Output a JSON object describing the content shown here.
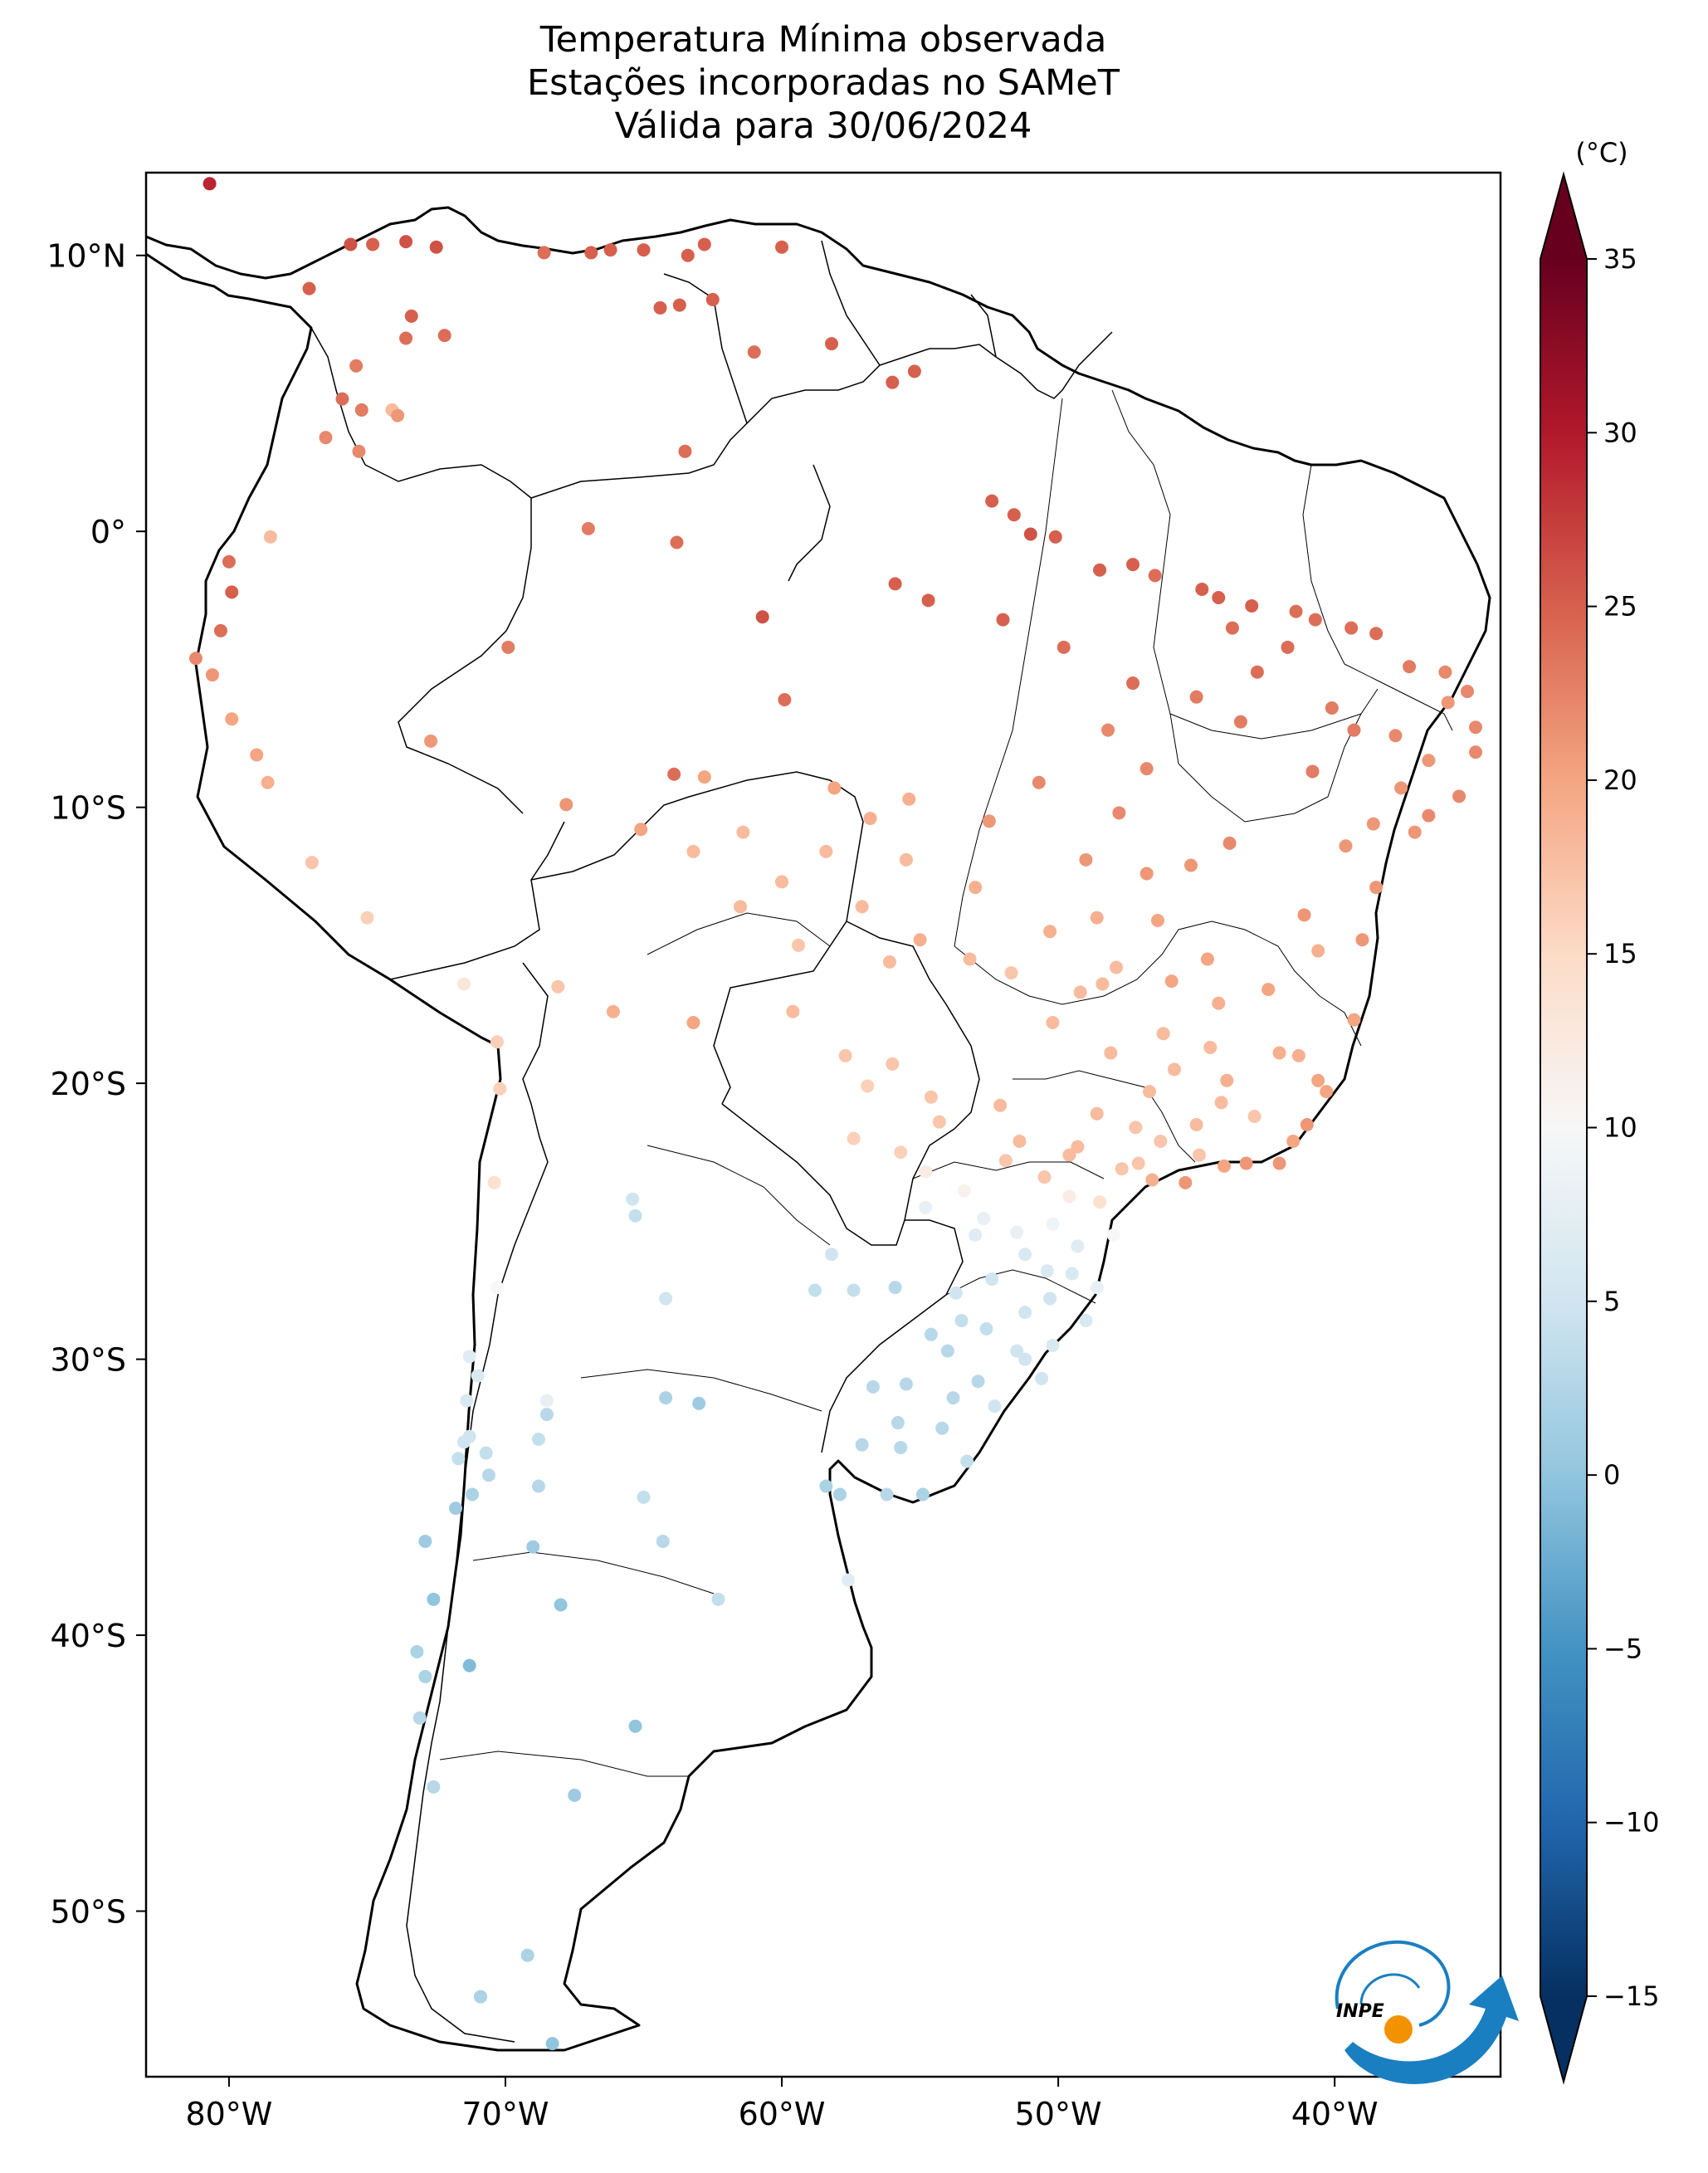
{
  "title": {
    "line1": "Temperatura Mínima observada",
    "line2": "Estações incorporadas no SAMeT",
    "line3": "Válida para 30/06/2024"
  },
  "axes": {
    "lon_ticks": [
      {
        "lon": -80,
        "label": "80°W"
      },
      {
        "lon": -70,
        "label": "70°W"
      },
      {
        "lon": -60,
        "label": "60°W"
      },
      {
        "lon": -50,
        "label": "50°W"
      },
      {
        "lon": -40,
        "label": "40°W"
      }
    ],
    "lat_ticks": [
      {
        "lat": 10,
        "label": "10°N"
      },
      {
        "lat": 0,
        "label": "0°"
      },
      {
        "lat": -10,
        "label": "10°S"
      },
      {
        "lat": -20,
        "label": "20°S"
      },
      {
        "lat": -30,
        "label": "30°S"
      },
      {
        "lat": -40,
        "label": "40°S"
      },
      {
        "lat": -50,
        "label": "50°S"
      }
    ],
    "lon_range": [
      -83,
      -34
    ],
    "lat_range": [
      -56,
      13
    ]
  },
  "colorbar": {
    "unit_label": "(°C)",
    "vmin": -15,
    "vmax": 35,
    "extend": "both",
    "ticks": [
      {
        "value": 35,
        "label": "35"
      },
      {
        "value": 30,
        "label": "30"
      },
      {
        "value": 25,
        "label": "25"
      },
      {
        "value": 20,
        "label": "20"
      },
      {
        "value": 15,
        "label": "15"
      },
      {
        "value": 10,
        "label": "10"
      },
      {
        "value": 5,
        "label": "5"
      },
      {
        "value": 0,
        "label": "0"
      },
      {
        "value": -5,
        "label": "−5"
      },
      {
        "value": -10,
        "label": "−10"
      },
      {
        "value": -15,
        "label": "−15"
      }
    ],
    "colormap": "RdBu_r",
    "colors": [
      "#053061",
      "#2166ac",
      "#4393c3",
      "#92c5de",
      "#d1e5f0",
      "#f7f7f7",
      "#fddbc7",
      "#f4a582",
      "#d6604d",
      "#b2182b",
      "#67001f"
    ]
  },
  "logo": {
    "text": "INPE"
  },
  "chart_data": {
    "type": "scatter",
    "x_label": "longitude",
    "y_label": "latitude",
    "value_label": "(°C)",
    "stations": [
      [
        -80.7,
        12.6,
        29
      ],
      [
        -75.6,
        10.4,
        26
      ],
      [
        -74.8,
        10.4,
        25
      ],
      [
        -73.6,
        10.5,
        26
      ],
      [
        -72.5,
        10.3,
        26
      ],
      [
        -77.1,
        8.8,
        25
      ],
      [
        -73.4,
        7.8,
        25
      ],
      [
        -73.6,
        7.0,
        24
      ],
      [
        -72.2,
        7.1,
        24
      ],
      [
        -75.4,
        6.0,
        23
      ],
      [
        -75.9,
        4.8,
        24
      ],
      [
        -75.2,
        4.4,
        23
      ],
      [
        -74.1,
        4.4,
        18
      ],
      [
        -73.9,
        4.2,
        21
      ],
      [
        -76.5,
        3.4,
        22
      ],
      [
        -75.3,
        2.9,
        22
      ],
      [
        -68.6,
        10.1,
        24
      ],
      [
        -66.9,
        10.1,
        25
      ],
      [
        -66.2,
        10.2,
        25
      ],
      [
        -65.0,
        10.2,
        25
      ],
      [
        -63.4,
        10.0,
        25
      ],
      [
        -62.8,
        10.4,
        25
      ],
      [
        -64.4,
        8.1,
        25
      ],
      [
        -63.7,
        8.2,
        25
      ],
      [
        -62.5,
        8.4,
        25
      ],
      [
        -61.0,
        6.5,
        24
      ],
      [
        -60.0,
        10.3,
        25
      ],
      [
        -58.2,
        6.8,
        25
      ],
      [
        -55.2,
        5.8,
        25
      ],
      [
        -56.0,
        5.4,
        25
      ],
      [
        -63.5,
        2.9,
        24
      ],
      [
        -67.0,
        0.1,
        23
      ],
      [
        -63.8,
        -0.4,
        24
      ],
      [
        -52.4,
        1.1,
        25
      ],
      [
        -51.6,
        0.6,
        25
      ],
      [
        -51.0,
        -0.1,
        26
      ],
      [
        -50.1,
        -0.2,
        25
      ],
      [
        -48.5,
        -1.4,
        25
      ],
      [
        -47.3,
        -1.2,
        25
      ],
      [
        -46.5,
        -1.6,
        24
      ],
      [
        -44.2,
        -2.4,
        25
      ],
      [
        -44.8,
        -2.1,
        25
      ],
      [
        -43.0,
        -2.7,
        25
      ],
      [
        -41.4,
        -2.9,
        24
      ],
      [
        -40.7,
        -3.2,
        24
      ],
      [
        -39.4,
        -3.5,
        24
      ],
      [
        -38.5,
        -3.7,
        24
      ],
      [
        -37.3,
        -4.9,
        23
      ],
      [
        -36.0,
        -5.1,
        22
      ],
      [
        -35.2,
        -5.8,
        22
      ],
      [
        -34.9,
        -7.1,
        22
      ],
      [
        -34.9,
        -8.0,
        22
      ],
      [
        -35.5,
        -9.6,
        22
      ],
      [
        -36.6,
        -10.3,
        22
      ],
      [
        -37.1,
        -10.9,
        21
      ],
      [
        -38.5,
        -12.9,
        21
      ],
      [
        -39.0,
        -14.8,
        21
      ],
      [
        -39.3,
        -17.7,
        20
      ],
      [
        -40.3,
        -20.3,
        20
      ],
      [
        -41.0,
        -21.5,
        21
      ],
      [
        -42.0,
        -22.9,
        21
      ],
      [
        -43.2,
        -22.9,
        21
      ],
      [
        -44.0,
        -23.0,
        20
      ],
      [
        -45.4,
        -23.6,
        21
      ],
      [
        -46.6,
        -23.5,
        19
      ],
      [
        -48.0,
        -25.5,
        10
      ],
      [
        -48.6,
        -27.4,
        8
      ],
      [
        -49.0,
        -28.6,
        6
      ],
      [
        -50.2,
        -29.5,
        6
      ],
      [
        -51.2,
        -30.0,
        5
      ],
      [
        -52.3,
        -31.7,
        5
      ],
      [
        -53.3,
        -33.7,
        4
      ],
      [
        -54.9,
        -34.9,
        2
      ],
      [
        -56.2,
        -34.9,
        3
      ],
      [
        -57.9,
        -34.9,
        2
      ],
      [
        -58.4,
        -34.6,
        2
      ],
      [
        -57.6,
        -38.0,
        7
      ],
      [
        -62.3,
        -38.7,
        4
      ],
      [
        -64.3,
        -36.6,
        3
      ],
      [
        -65.0,
        -35.0,
        4
      ],
      [
        -68.8,
        -32.9,
        4
      ],
      [
        -68.5,
        -31.5,
        8
      ],
      [
        -70.7,
        -33.4,
        4
      ],
      [
        -71.5,
        -33.0,
        5
      ],
      [
        -71.3,
        -29.9,
        7
      ],
      [
        -70.3,
        -27.4,
        10
      ],
      [
        -70.4,
        -23.6,
        14
      ],
      [
        -70.2,
        -20.2,
        16
      ],
      [
        -70.3,
        -18.5,
        16
      ],
      [
        -71.5,
        -16.4,
        13
      ],
      [
        -75.0,
        -14.0,
        16
      ],
      [
        -77.0,
        -12.0,
        17
      ],
      [
        -78.6,
        -9.1,
        19
      ],
      [
        -79.0,
        -8.1,
        20
      ],
      [
        -79.9,
        -6.8,
        20
      ],
      [
        -80.6,
        -5.2,
        21
      ],
      [
        -81.2,
        -4.6,
        22
      ],
      [
        -80.3,
        -3.6,
        24
      ],
      [
        -79.9,
        -2.2,
        25
      ],
      [
        -80.0,
        -1.1,
        24
      ],
      [
        -78.5,
        -0.2,
        18
      ],
      [
        -68.1,
        -16.5,
        17
      ],
      [
        -66.1,
        -17.4,
        19
      ],
      [
        -63.2,
        -17.8,
        20
      ],
      [
        -65.3,
        -24.8,
        4
      ],
      [
        -65.4,
        -24.2,
        5
      ],
      [
        -64.2,
        -27.8,
        5
      ],
      [
        -64.2,
        -31.4,
        2
      ],
      [
        -63.0,
        -31.6,
        1
      ],
      [
        -68.5,
        -32.0,
        3
      ],
      [
        -68.8,
        -34.6,
        3
      ],
      [
        -69.0,
        -36.8,
        1
      ],
      [
        -68.0,
        -38.9,
        0
      ],
      [
        -71.3,
        -41.1,
        -1
      ],
      [
        -67.5,
        -45.8,
        1
      ],
      [
        -65.3,
        -43.3,
        0
      ],
      [
        -69.2,
        -51.6,
        2
      ],
      [
        -70.9,
        -53.1,
        2
      ],
      [
        -68.3,
        -54.8,
        0
      ],
      [
        -72.9,
        -41.5,
        2
      ],
      [
        -73.1,
        -43.0,
        3
      ],
      [
        -72.6,
        -45.5,
        3
      ],
      [
        -73.2,
        -40.6,
        2
      ],
      [
        -72.6,
        -38.7,
        0
      ],
      [
        -72.9,
        -36.6,
        1
      ],
      [
        -71.8,
        -35.4,
        1
      ],
      [
        -71.2,
        -34.9,
        2
      ],
      [
        -70.6,
        -34.2,
        3
      ],
      [
        -71.7,
        -33.6,
        4
      ],
      [
        -71.3,
        -32.8,
        5
      ],
      [
        -71.4,
        -31.5,
        6
      ],
      [
        -71.0,
        -30.6,
        6
      ],
      [
        -60.7,
        -3.1,
        26
      ],
      [
        -63.9,
        -8.8,
        24
      ],
      [
        -67.8,
        -9.9,
        21
      ],
      [
        -72.7,
        -7.6,
        21
      ],
      [
        -69.9,
        -4.2,
        23
      ],
      [
        -59.9,
        -6.1,
        24
      ],
      [
        -55.9,
        -1.9,
        25
      ],
      [
        -54.7,
        -2.5,
        25
      ],
      [
        -52.0,
        -3.2,
        25
      ],
      [
        -49.8,
        -4.2,
        24
      ],
      [
        -48.2,
        -7.2,
        22
      ],
      [
        -47.3,
        -5.5,
        24
      ],
      [
        -45.0,
        -6.0,
        23
      ],
      [
        -43.4,
        -6.9,
        23
      ],
      [
        -42.8,
        -5.1,
        24
      ],
      [
        -40.8,
        -8.7,
        23
      ],
      [
        -39.3,
        -7.2,
        23
      ],
      [
        -38.6,
        -10.6,
        21
      ],
      [
        -45.2,
        -12.1,
        21
      ],
      [
        -47.8,
        -10.2,
        22
      ],
      [
        -46.4,
        -14.1,
        20
      ],
      [
        -49.2,
        -16.7,
        18
      ],
      [
        -47.9,
        -15.8,
        18
      ],
      [
        -44.5,
        -18.7,
        18
      ],
      [
        -43.9,
        -19.9,
        19
      ],
      [
        -45.0,
        -21.5,
        18
      ],
      [
        -47.1,
        -22.9,
        17
      ],
      [
        -49.3,
        -22.3,
        18
      ],
      [
        -51.4,
        -22.1,
        18
      ],
      [
        -52.1,
        -20.8,
        18
      ],
      [
        -54.6,
        -20.5,
        17
      ],
      [
        -56.1,
        -15.6,
        18
      ],
      [
        -55.5,
        -11.9,
        18
      ],
      [
        -59.4,
        -15.0,
        17
      ],
      [
        -60.0,
        -12.7,
        18
      ],
      [
        -58.1,
        -9.3,
        20
      ],
      [
        -57.4,
        -22.0,
        16
      ],
      [
        -54.8,
        -24.5,
        8
      ],
      [
        -53.0,
        -25.5,
        7
      ],
      [
        -51.5,
        -25.4,
        8
      ],
      [
        -50.2,
        -25.1,
        9
      ],
      [
        -51.2,
        -26.2,
        6
      ],
      [
        -52.4,
        -27.1,
        5
      ],
      [
        -53.5,
        -28.6,
        4
      ],
      [
        -54.0,
        -29.7,
        3
      ],
      [
        -55.5,
        -30.9,
        3
      ],
      [
        -56.7,
        -31.0,
        3
      ],
      [
        -55.7,
        -33.2,
        3
      ],
      [
        -53.8,
        -31.4,
        3
      ],
      [
        -51.2,
        -28.3,
        5
      ],
      [
        -50.3,
        -27.8,
        5
      ],
      [
        -49.5,
        -26.9,
        6
      ],
      [
        -55.9,
        -27.4,
        3
      ],
      [
        -57.4,
        -27.5,
        4
      ],
      [
        -58.8,
        -27.5,
        4
      ],
      [
        -58.2,
        -26.2,
        5
      ],
      [
        -45.9,
        -16.3,
        20
      ],
      [
        -42.4,
        -16.6,
        20
      ],
      [
        -41.1,
        -13.9,
        21
      ],
      [
        -43.8,
        -11.3,
        22
      ],
      [
        -46.8,
        -8.6,
        22
      ],
      [
        -43.7,
        -3.5,
        24
      ],
      [
        -41.7,
        -4.2,
        24
      ],
      [
        -40.1,
        -6.4,
        23
      ],
      [
        -37.8,
        -7.4,
        22
      ],
      [
        -35.9,
        -6.2,
        21
      ],
      [
        -36.6,
        -8.3,
        21
      ],
      [
        -37.6,
        -9.3,
        21
      ],
      [
        -39.6,
        -11.4,
        21
      ],
      [
        -40.6,
        -15.2,
        19
      ],
      [
        -41.3,
        -19.0,
        19
      ],
      [
        -42.9,
        -21.2,
        17
      ],
      [
        -44.1,
        -20.7,
        18
      ],
      [
        -46.7,
        -20.3,
        18
      ],
      [
        -48.1,
        -18.9,
        18
      ],
      [
        -50.2,
        -17.8,
        18
      ],
      [
        -51.7,
        -16.0,
        17
      ],
      [
        -53.2,
        -15.5,
        18
      ],
      [
        -55.0,
        -14.8,
        19
      ],
      [
        -57.1,
        -13.6,
        18
      ],
      [
        -52.5,
        -10.5,
        21
      ],
      [
        -50.7,
        -9.1,
        22
      ],
      [
        -49.0,
        -11.9,
        21
      ],
      [
        -48.6,
        -14.0,
        19
      ],
      [
        -46.2,
        -18.2,
        18
      ],
      [
        -48.6,
        -21.1,
        18
      ],
      [
        -50.5,
        -23.4,
        17
      ],
      [
        -47.7,
        -23.1,
        17
      ],
      [
        -46.3,
        -22.1,
        17
      ],
      [
        -44.9,
        -22.6,
        17
      ],
      [
        -48.5,
        -24.3,
        14
      ],
      [
        -49.6,
        -22.6,
        18
      ],
      [
        -51.9,
        -22.8,
        17
      ],
      [
        -53.4,
        -23.9,
        11
      ],
      [
        -52.7,
        -24.9,
        8
      ],
      [
        -49.3,
        -25.9,
        7
      ],
      [
        -50.4,
        -26.8,
        6
      ],
      [
        -53.7,
        -27.6,
        5
      ],
      [
        -54.6,
        -29.1,
        3
      ],
      [
        -52.6,
        -28.9,
        4
      ],
      [
        -51.5,
        -29.7,
        5
      ],
      [
        -50.6,
        -30.7,
        5
      ],
      [
        -52.9,
        -30.8,
        3
      ],
      [
        -54.2,
        -32.5,
        3
      ],
      [
        -55.8,
        -32.3,
        3
      ],
      [
        -57.1,
        -33.1,
        3
      ],
      [
        -49.6,
        -24.1,
        12
      ],
      [
        -47.2,
        -21.6,
        17
      ],
      [
        -45.8,
        -19.5,
        18
      ],
      [
        -44.2,
        -17.1,
        19
      ],
      [
        -42.0,
        -18.9,
        19
      ],
      [
        -41.5,
        -22.1,
        20
      ],
      [
        -40.6,
        -19.9,
        20
      ],
      [
        -44.6,
        -15.5,
        20
      ],
      [
        -46.8,
        -12.4,
        21
      ],
      [
        -48.4,
        -16.4,
        18
      ],
      [
        -50.3,
        -14.5,
        19
      ],
      [
        -53.0,
        -12.9,
        19
      ],
      [
        -55.4,
        -9.7,
        19
      ],
      [
        -56.8,
        -10.4,
        19
      ],
      [
        -58.4,
        -11.6,
        18
      ],
      [
        -61.4,
        -10.9,
        18
      ],
      [
        -62.8,
        -8.9,
        20
      ],
      [
        -65.1,
        -10.8,
        20
      ],
      [
        -63.2,
        -11.6,
        18
      ],
      [
        -61.5,
        -13.6,
        18
      ],
      [
        -59.6,
        -17.4,
        18
      ],
      [
        -57.7,
        -19.0,
        17
      ],
      [
        -56.0,
        -19.3,
        17
      ],
      [
        -54.3,
        -21.4,
        17
      ],
      [
        -55.7,
        -22.5,
        16
      ],
      [
        -54.8,
        -23.2,
        12
      ],
      [
        -56.9,
        -20.1,
        16
      ]
    ]
  }
}
